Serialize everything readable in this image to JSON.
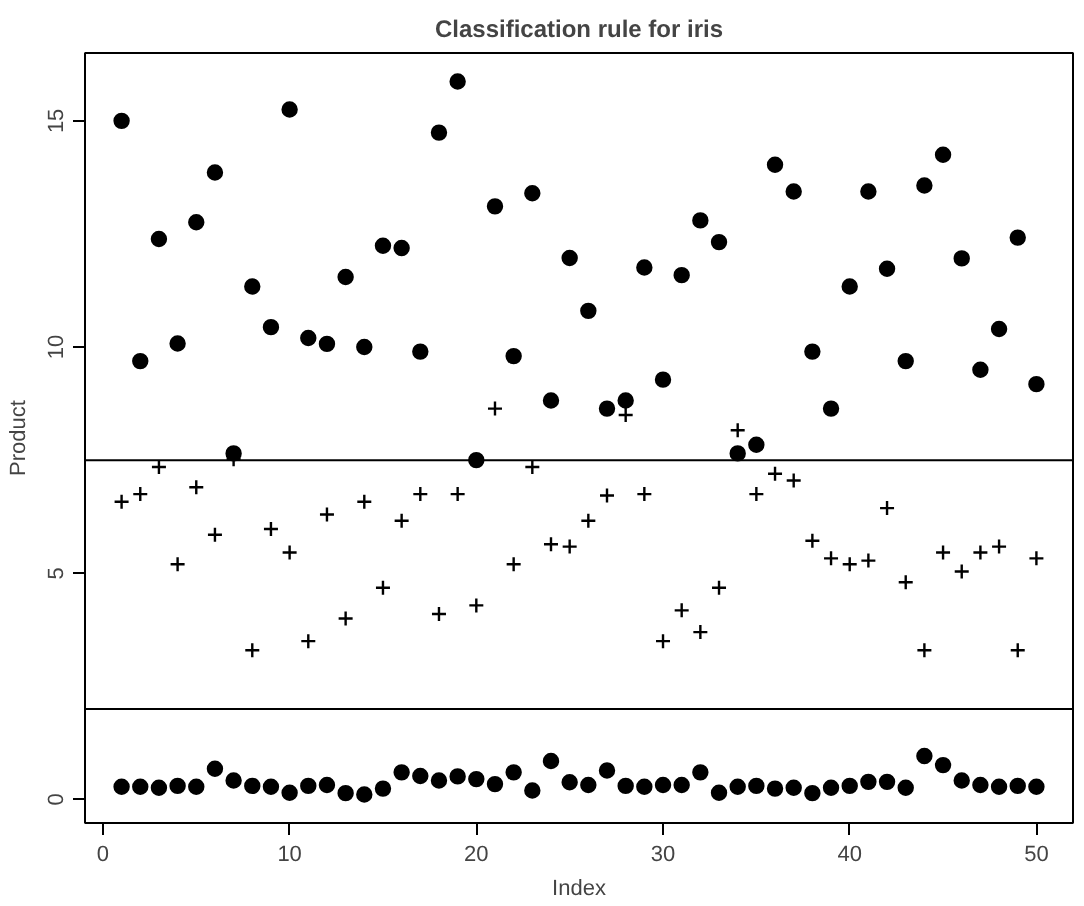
{
  "chart_data": {
    "type": "scatter",
    "title": "Classification rule for iris",
    "xlabel": "Index",
    "ylabel": "Product",
    "x": [
      1,
      2,
      3,
      4,
      5,
      6,
      7,
      8,
      9,
      10,
      11,
      12,
      13,
      14,
      15,
      16,
      17,
      18,
      19,
      20,
      21,
      22,
      23,
      24,
      25,
      26,
      27,
      28,
      29,
      30,
      31,
      32,
      33,
      34,
      35,
      36,
      37,
      38,
      39,
      40,
      41,
      42,
      43,
      44,
      45,
      46,
      47,
      48,
      49,
      50
    ],
    "series": [
      {
        "color": "#000000",
        "marker": "circle",
        "values": [
          0.28,
          0.28,
          0.26,
          0.3,
          0.28,
          0.68,
          0.42,
          0.3,
          0.28,
          0.15,
          0.3,
          0.32,
          0.14,
          0.11,
          0.24,
          0.6,
          0.52,
          0.42,
          0.51,
          0.45,
          0.34,
          0.6,
          0.2,
          0.85,
          0.38,
          0.32,
          0.64,
          0.3,
          0.28,
          0.32,
          0.32,
          0.6,
          0.15,
          0.28,
          0.3,
          0.24,
          0.26,
          0.14,
          0.26,
          0.3,
          0.39,
          0.39,
          0.26,
          0.96,
          0.76,
          0.42,
          0.32,
          0.28,
          0.3,
          0.28
        ]
      },
      {
        "color": "#000000",
        "marker": "cross",
        "values": [
          6.58,
          6.75,
          7.35,
          5.2,
          6.9,
          5.85,
          7.52,
          3.3,
          5.98,
          5.46,
          3.5,
          6.3,
          4.0,
          6.58,
          4.68,
          6.16,
          6.75,
          4.1,
          6.75,
          4.29,
          8.64,
          5.2,
          7.35,
          5.64,
          5.59,
          6.16,
          6.72,
          8.5,
          6.75,
          3.5,
          4.18,
          3.7,
          4.68,
          8.16,
          6.75,
          7.2,
          7.05,
          5.72,
          5.33,
          5.2,
          5.28,
          6.44,
          4.8,
          3.3,
          5.46,
          5.04,
          5.46,
          5.59,
          3.3,
          5.33
        ]
      },
      {
        "color": "#000000",
        "marker": "circle",
        "values": [
          15.0,
          9.69,
          12.39,
          10.08,
          12.76,
          13.86,
          7.65,
          11.34,
          10.44,
          15.25,
          10.2,
          10.07,
          11.55,
          10.0,
          12.24,
          12.19,
          9.9,
          14.74,
          15.87,
          7.5,
          13.11,
          9.8,
          13.4,
          8.82,
          11.97,
          10.8,
          8.64,
          8.82,
          11.76,
          9.28,
          11.59,
          12.8,
          12.32,
          7.65,
          7.84,
          14.03,
          13.44,
          9.9,
          8.64,
          11.34,
          13.44,
          11.73,
          9.69,
          13.57,
          14.25,
          11.96,
          9.5,
          10.4,
          12.42,
          9.18
        ]
      }
    ],
    "ref_lines": [
      {
        "axis": "y",
        "value": 7.5,
        "color": "#000000"
      },
      {
        "axis": "y",
        "value": 2,
        "color": "#000000"
      }
    ],
    "xlim": [
      -0.96,
      51.96
    ],
    "ylim": [
      -0.52,
      16.5
    ],
    "xticks": [
      0,
      10,
      20,
      30,
      40,
      50
    ],
    "yticks": [
      0,
      5,
      10,
      15
    ],
    "grid": false
  }
}
